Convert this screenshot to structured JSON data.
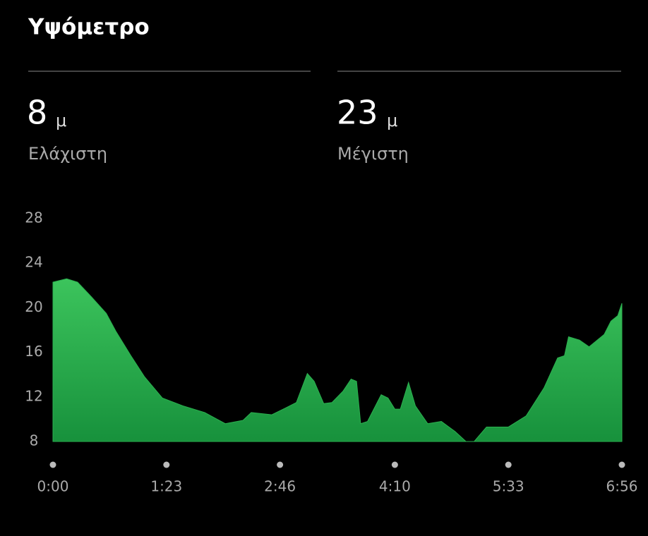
{
  "header": {
    "title": "Υψόμετρο"
  },
  "stats": [
    {
      "value": 8,
      "unit": "μ",
      "label": "Ελάχιστη"
    },
    {
      "value": 23,
      "unit": "μ",
      "label": "Μέγιστη"
    }
  ],
  "chart_data": {
    "type": "area",
    "color": "#2bb04f",
    "x": [
      0,
      10,
      18,
      28,
      39,
      46,
      57,
      67,
      80,
      95,
      111,
      126,
      139,
      145,
      160,
      170,
      178,
      186,
      191,
      198,
      204,
      212,
      218,
      222,
      225,
      230,
      240,
      245,
      250,
      254,
      260,
      265,
      274,
      284,
      294,
      302,
      308,
      317,
      333,
      346,
      359,
      369,
      374,
      377,
      385,
      392,
      403,
      408,
      413,
      416
    ],
    "values": [
      22.3,
      22.6,
      22.3,
      21.0,
      19.5,
      17.9,
      15.7,
      13.8,
      11.9,
      11.2,
      10.6,
      9.6,
      9.9,
      10.6,
      10.4,
      11.0,
      11.5,
      14.1,
      13.4,
      11.4,
      11.5,
      12.5,
      13.6,
      13.4,
      9.6,
      9.8,
      12.2,
      11.9,
      10.9,
      10.9,
      13.3,
      11.2,
      9.6,
      9.8,
      8.9,
      8.0,
      8.0,
      9.3,
      9.3,
      10.3,
      12.8,
      15.5,
      15.7,
      17.4,
      17.1,
      16.5,
      17.6,
      18.8,
      19.3,
      20.4
    ],
    "xlim": [
      0,
      416
    ],
    "xticks": [
      {
        "value": 0,
        "label": "0:00"
      },
      {
        "value": 83,
        "label": "1:23"
      },
      {
        "value": 166,
        "label": "2:46"
      },
      {
        "value": 250,
        "label": "4:10"
      },
      {
        "value": 333,
        "label": "5:33"
      },
      {
        "value": 416,
        "label": "6:56"
      }
    ],
    "ylim": [
      8,
      28
    ],
    "yticks": [
      8,
      12,
      16,
      20,
      24,
      28
    ]
  }
}
